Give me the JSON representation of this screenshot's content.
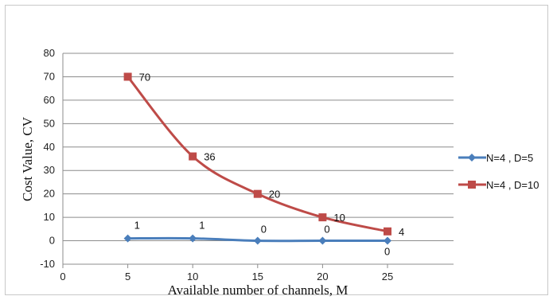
{
  "chart_data": {
    "type": "line",
    "xlabel": "Available number of channels, M",
    "ylabel": "Cost Value, CV",
    "xlim": [
      0,
      30
    ],
    "ylim": [
      -10,
      80
    ],
    "x_ticks": [
      0,
      5,
      10,
      15,
      20,
      25
    ],
    "y_ticks": [
      -10,
      0,
      10,
      20,
      30,
      40,
      50,
      60,
      70,
      80
    ],
    "grid": "horizontal",
    "legend_position": "right",
    "series": [
      {
        "name": "N=4 , D=5",
        "color": "#4a7ebb",
        "marker": "diamond",
        "x": [
          5,
          10,
          15,
          20,
          25
        ],
        "values": [
          1,
          1,
          0,
          0,
          0
        ],
        "labels": [
          "1",
          "1",
          "0",
          "0",
          "0"
        ]
      },
      {
        "name": "N=4 , D=10",
        "color": "#be4b48",
        "marker": "square",
        "x": [
          5,
          10,
          15,
          20,
          25
        ],
        "values": [
          70,
          36,
          20,
          10,
          4
        ],
        "labels": [
          "70",
          "36",
          "20",
          "10",
          "4"
        ]
      }
    ]
  }
}
